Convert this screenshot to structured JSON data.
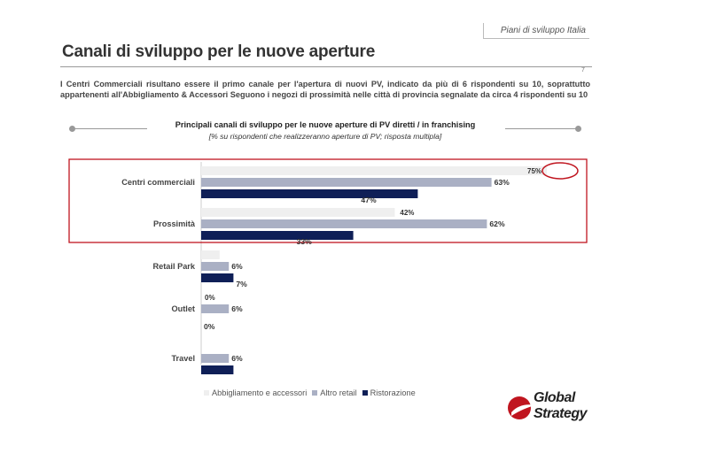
{
  "header": {
    "section": "Piani di sviluppo Italia",
    "page_number": "7"
  },
  "page_title": "Canali di sviluppo per le nuove aperture",
  "intro": "I Centri Commerciali risultano essere il primo canale per l'apertura di nuovi PV, indicato da più di 6 rispondenti su 10, soprattutto appartenenti all'Abbigliamento & Accessori Seguono i negozi di prossimità nelle città di provincia segnalate da circa 4 rispondenti su 10",
  "chart_data": {
    "type": "bar",
    "orientation": "horizontal",
    "title": "Principali canali di sviluppo per le nuove aperture di PV diretti / in franchising",
    "subtitle": "[% su rispondenti che realizzeranno aperture di PV; risposta multipla]",
    "categories": [
      "Centri commerciali",
      "Prossimità",
      "Retail Park",
      "Outlet",
      "Travel"
    ],
    "series": [
      {
        "name": "Abbigliamento e accessori",
        "color": "#efefef",
        "values": [
          75,
          42,
          4,
          0,
          null
        ],
        "labels": [
          "75%",
          "42%",
          "",
          "0%",
          ""
        ]
      },
      {
        "name": "Altro retail",
        "color": "#aab0c4",
        "values": [
          63,
          62,
          6,
          6,
          6
        ],
        "labels": [
          "63%",
          "62%",
          "6%",
          "6%",
          "6%"
        ]
      },
      {
        "name": "Ristorazione",
        "color": "#0f1f57",
        "values": [
          47,
          33,
          7,
          0,
          7
        ],
        "labels": [
          "47%",
          "33%",
          "7%",
          "0%",
          ""
        ]
      }
    ],
    "xlim": [
      0,
      75
    ],
    "legend_position": "bottom",
    "highlight": {
      "categories": [
        "Centri commerciali",
        "Prossimità"
      ],
      "color": "#c0151f",
      "circled_label": "75%"
    }
  },
  "logo": {
    "line1": "Global",
    "line2": "Strategy"
  }
}
